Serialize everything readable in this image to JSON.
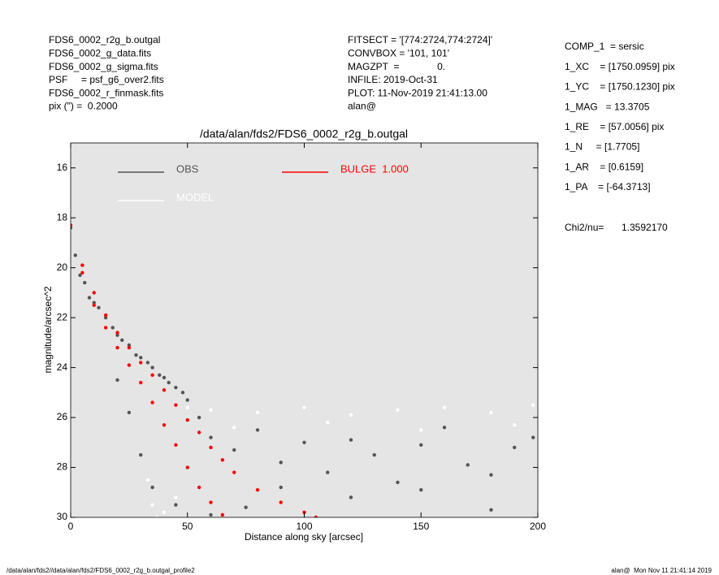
{
  "header": {
    "left": [
      "FDS6_0002_r2g_b.outgal",
      "FDS6_0002_g_data.fits",
      "FDS6_0002_g_sigma.fits",
      "PSF     = psf_g6_over2.fits",
      "FDS6_0002_r_finmask.fits",
      "pix (\") =  0.2000"
    ],
    "middle": [
      "FITSECT = '[774:2724,774:2724]'",
      "CONVBOX = '101, 101'",
      "MAGZPT  =              0.",
      "INFILE: 2019-Oct-31",
      "PLOT: 11-Nov-2019 21:41:13.00",
      "alan@"
    ],
    "right": [
      "COMP_1  = sersic",
      "1_XC    = [1750.0959] pix",
      "1_YC    = [1750.1230] pix",
      "1_MAG   = 13.3705",
      "1_RE    = [57.0056] pix",
      "1_N     = [1.7705]",
      "1_AR    = [0.6159]",
      "1_PA    = [-64.3713]"
    ],
    "chi2_label": "Chi2/nu=",
    "chi2_value": "1.3592170"
  },
  "footer": {
    "left": "/data/alan/fds2//data/alan/fds2/FDS6_0002_r2g_b.outgal_profile2",
    "right": "alan@  Mon Nov 11 21:41:14 2019"
  },
  "chart_data": {
    "type": "scatter",
    "title": "/data/alan/fds2/FDS6_0002_r2g_b.outgal",
    "xlabel": "Distance along sky [arcsec]",
    "ylabel": "magnitude/arcsec^2",
    "xlim": [
      0,
      200
    ],
    "xticks": [
      0,
      50,
      100,
      150,
      200
    ],
    "ylim": [
      30,
      15
    ],
    "yticks": [
      16,
      18,
      20,
      22,
      24,
      26,
      28,
      30
    ],
    "background": "#e5e5e5",
    "series": [
      {
        "name": "OBS",
        "color": "#555555",
        "x": [
          0,
          2,
          4,
          6,
          8,
          10,
          12,
          15,
          18,
          20,
          22,
          25,
          28,
          30,
          33,
          35,
          38,
          40,
          42,
          45,
          48,
          50,
          55,
          60,
          70,
          80,
          90,
          100,
          110,
          120,
          130,
          140,
          150,
          160,
          170,
          180,
          190,
          198,
          20,
          25,
          30,
          35,
          45,
          60,
          75,
          90,
          120,
          150,
          180
        ],
        "values": [
          18.4,
          19.5,
          20.3,
          20.6,
          21.2,
          21.4,
          21.6,
          22.0,
          22.4,
          22.7,
          22.9,
          23.1,
          23.5,
          23.6,
          23.8,
          24.0,
          24.3,
          24.4,
          24.6,
          24.8,
          25.0,
          25.3,
          26.0,
          26.8,
          27.3,
          26.5,
          27.8,
          27.0,
          28.2,
          26.9,
          27.5,
          28.6,
          27.1,
          26.4,
          27.9,
          28.3,
          27.2,
          26.8,
          24.5,
          25.8,
          27.5,
          28.8,
          29.5,
          29.9,
          29.6,
          28.8,
          29.2,
          28.9,
          29.7
        ]
      },
      {
        "name": "MODEL",
        "color": "#ffffff",
        "x": [
          33,
          35,
          37,
          40,
          45,
          50,
          60,
          80,
          100,
          120,
          140,
          160,
          180,
          198,
          70,
          110,
          150,
          190
        ],
        "values": [
          28.5,
          29.5,
          30.0,
          29.8,
          29.2,
          25.6,
          25.7,
          25.8,
          25.6,
          25.9,
          25.7,
          25.6,
          25.8,
          25.5,
          26.4,
          26.2,
          26.5,
          26.3
        ]
      },
      {
        "name": "BULGE  1.000",
        "color": "#ff0000",
        "x": [
          0,
          5,
          10,
          15,
          20,
          25,
          30,
          35,
          40,
          45,
          50,
          55,
          60,
          65,
          5,
          10,
          15,
          20,
          25,
          30,
          35,
          40,
          45,
          50,
          55,
          60,
          65,
          70,
          80,
          90,
          100,
          105
        ],
        "values": [
          18.3,
          20.2,
          21.5,
          22.4,
          23.2,
          23.9,
          24.6,
          25.4,
          26.3,
          27.1,
          28.0,
          28.8,
          29.4,
          29.9,
          19.9,
          21.0,
          21.9,
          22.6,
          23.2,
          23.8,
          24.3,
          24.9,
          25.5,
          26.1,
          26.6,
          27.2,
          27.7,
          28.2,
          28.9,
          29.4,
          29.8,
          30.0
        ]
      }
    ]
  }
}
